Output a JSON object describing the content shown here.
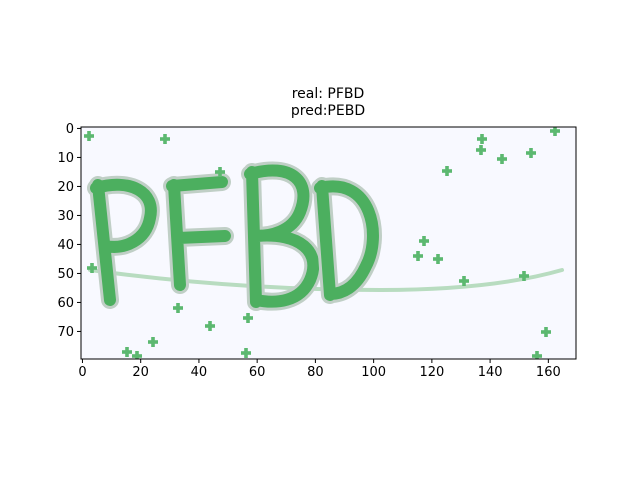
{
  "title": {
    "real_label": "real: PFBD",
    "pred_label": "pred:PEBD"
  },
  "image": {
    "text_in_image": "PFBD",
    "background_color": "#f8f9ff",
    "glyph_color": "#4caf5f",
    "glyph_outline_color": "#b8c8c0",
    "noise_color": "#5cb870"
  },
  "axes": {
    "x_ticks": [
      "0",
      "20",
      "40",
      "60",
      "80",
      "100",
      "120",
      "140",
      "160"
    ],
    "x_tick_values": [
      0,
      20,
      40,
      60,
      80,
      100,
      120,
      140,
      160
    ],
    "y_ticks": [
      "0",
      "10",
      "20",
      "30",
      "40",
      "50",
      "60",
      "70"
    ],
    "y_tick_values": [
      0,
      10,
      20,
      30,
      40,
      50,
      60,
      70
    ],
    "xlim": [
      -0.5,
      169.5
    ],
    "ylim": [
      79.5,
      -0.5
    ]
  }
}
